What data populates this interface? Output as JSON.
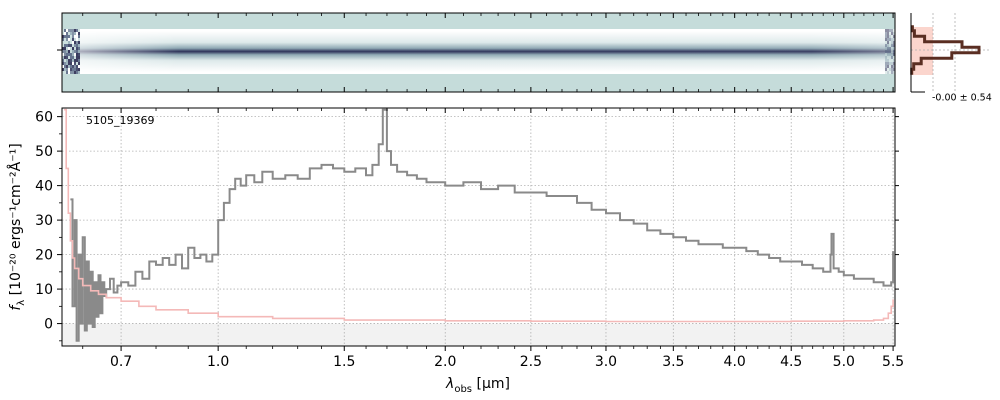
{
  "chart_data": [
    {
      "type": "heatmap",
      "name": "2D spectrum",
      "description_note": "",
      "colormap": [
        "#ffffff",
        "#c5dcda",
        "#8fa9b4",
        "#4f5f7e",
        "#1d1f47"
      ],
      "band_color": "#c5dcda",
      "trace_color": "#1d1f47"
    },
    {
      "type": "line",
      "name": "spatial profile",
      "label": "-0.00 ± 0.54",
      "profile_color": "#5a2e22",
      "shade_color": "#f9c7bc",
      "offsets": [
        -4,
        -3,
        -2,
        -1,
        0,
        1,
        2,
        3,
        4
      ],
      "profile": [
        0.02,
        0.05,
        0.2,
        0.75,
        1.0,
        0.6,
        0.15,
        0.04,
        0.01
      ]
    },
    {
      "type": "line",
      "object_label": "5105_19369",
      "xlabel_main": "λ",
      "xlabel_sub": "obs",
      "xlabel_unit": " [μm]",
      "ylabel_main": "f",
      "ylabel_sub": "λ",
      "ylabel_unit": " [10⁻²⁰ ergs⁻¹cm⁻²Å⁻¹]",
      "x_ticks": [
        0.7,
        1.0,
        1.5,
        2.0,
        2.5,
        3.0,
        3.5,
        4.0,
        4.5,
        5.0,
        5.5
      ],
      "x_tick_labels": [
        "0.7",
        "1.0",
        "1.5",
        "2.0",
        "2.5",
        "3.0",
        "3.5",
        "4.0",
        "4.5",
        "5.0",
        "5.5"
      ],
      "y_ticks": [
        0,
        10,
        20,
        30,
        40,
        50,
        60
      ],
      "y_tick_labels": [
        "0",
        "10",
        "20",
        "30",
        "40",
        "50",
        "60"
      ],
      "xlim": [
        0.55,
        5.52
      ],
      "ylim": [
        -6.5,
        62.5
      ],
      "grid": true,
      "series": [
        {
          "color": "#8a8a8a",
          "x": [
            0.57,
            0.575,
            0.58,
            0.585,
            0.59,
            0.595,
            0.6,
            0.605,
            0.61,
            0.615,
            0.62,
            0.625,
            0.63,
            0.635,
            0.64,
            0.645,
            0.65,
            0.655,
            0.66,
            0.67,
            0.68,
            0.69,
            0.7,
            0.72,
            0.74,
            0.76,
            0.78,
            0.8,
            0.82,
            0.84,
            0.86,
            0.88,
            0.9,
            0.92,
            0.94,
            0.96,
            0.98,
            1.0,
            1.02,
            1.04,
            1.06,
            1.08,
            1.1,
            1.13,
            1.16,
            1.2,
            1.25,
            1.3,
            1.35,
            1.4,
            1.45,
            1.5,
            1.55,
            1.6,
            1.63,
            1.66,
            1.68,
            1.7,
            1.72,
            1.75,
            1.8,
            1.85,
            1.9,
            1.95,
            2.0,
            2.1,
            2.2,
            2.3,
            2.4,
            2.5,
            2.6,
            2.7,
            2.8,
            2.9,
            3.0,
            3.1,
            3.2,
            3.3,
            3.4,
            3.5,
            3.6,
            3.7,
            3.8,
            3.9,
            4.0,
            4.1,
            4.2,
            4.3,
            4.4,
            4.5,
            4.6,
            4.7,
            4.8,
            4.85,
            4.87,
            4.88,
            4.9,
            4.95,
            5.0,
            5.1,
            5.2,
            5.3,
            5.4,
            5.45,
            5.48,
            5.5
          ],
          "y": [
            36,
            5,
            30,
            -5,
            20,
            0,
            25,
            -2,
            18,
            0,
            15,
            -1,
            12,
            2,
            14,
            3,
            12,
            8,
            10,
            13,
            9,
            11,
            12,
            11,
            15,
            13,
            18,
            17,
            19,
            17,
            20,
            16,
            22,
            19,
            20,
            18,
            20,
            30,
            35,
            39,
            42,
            40,
            43,
            41,
            44,
            42,
            43,
            42,
            45,
            46,
            45,
            44,
            45,
            43,
            46,
            52,
            62,
            50,
            46,
            44,
            43,
            42,
            41,
            41,
            40,
            41,
            39,
            40,
            38,
            38,
            37,
            37,
            35,
            33,
            32,
            30,
            29,
            27,
            26,
            25,
            24,
            23,
            23,
            22,
            22,
            21,
            20,
            19,
            18,
            18,
            17,
            16,
            15,
            15,
            20,
            26,
            16,
            15,
            14,
            13,
            13,
            12,
            11,
            11,
            12,
            21
          ]
        },
        {
          "color": "#f4b9b8",
          "x": [
            0.555,
            0.56,
            0.565,
            0.57,
            0.575,
            0.58,
            0.59,
            0.6,
            0.62,
            0.64,
            0.66,
            0.7,
            0.75,
            0.8,
            0.9,
            1.0,
            1.2,
            1.5,
            2.0,
            2.5,
            3.0,
            3.5,
            4.0,
            4.5,
            5.0,
            5.3,
            5.4,
            5.45,
            5.48,
            5.5
          ],
          "y": [
            62,
            45,
            32,
            24,
            19,
            16,
            13,
            11,
            9.5,
            8.5,
            7.5,
            6.5,
            5,
            4,
            3,
            2,
            1.5,
            1,
            0.8,
            0.7,
            0.6,
            0.6,
            0.6,
            0.7,
            0.8,
            1,
            1.5,
            3,
            5,
            7
          ]
        }
      ]
    }
  ]
}
